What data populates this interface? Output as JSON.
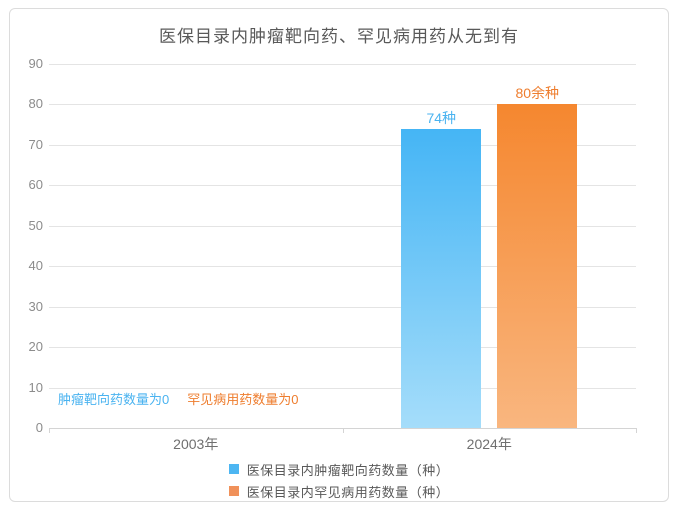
{
  "colors": {
    "title": "#595959",
    "y_axis_label": "#8c8c8c",
    "x_axis_label": "#6f6f6f",
    "gridline": "#e4e4e4",
    "axis_line": "#d4d4d4",
    "card_border": "#dcdcdc",
    "legend_text": "#595959"
  },
  "chart_data": {
    "type": "bar",
    "title": "医保目录内肿瘤靶向药、罕见病用药从无到有",
    "categories": [
      "2003年",
      "2024年"
    ],
    "series": [
      {
        "name": "医保目录内肿瘤靶向药数量（种）",
        "values": [
          0,
          74
        ],
        "data_label": "74种",
        "color_top": "#45b5f5",
        "color_bottom": "#a5ddfa",
        "swatch_color": "#4db6f2",
        "label_color": "#4ab3f0"
      },
      {
        "name": "医保目录内罕见病用药数量（种）",
        "values": [
          0,
          80
        ],
        "data_label": "80余种",
        "color_top": "#f5872f",
        "color_bottom": "#f9b67f",
        "swatch_color": "#f0915a",
        "label_color": "#ee7d2e"
      }
    ],
    "annotations": [
      {
        "text": "肿瘤靶向药数量为0",
        "color": "#4ab3f0"
      },
      {
        "text": "罕见病用药数量为0",
        "color": "#ee7d2e"
      }
    ],
    "xlabel": "",
    "ylabel": "",
    "ylim": [
      0,
      90
    ],
    "yticks": [
      0,
      10,
      20,
      30,
      40,
      50,
      60,
      70,
      80,
      90
    ],
    "grid": true,
    "legend_position": "bottom"
  }
}
